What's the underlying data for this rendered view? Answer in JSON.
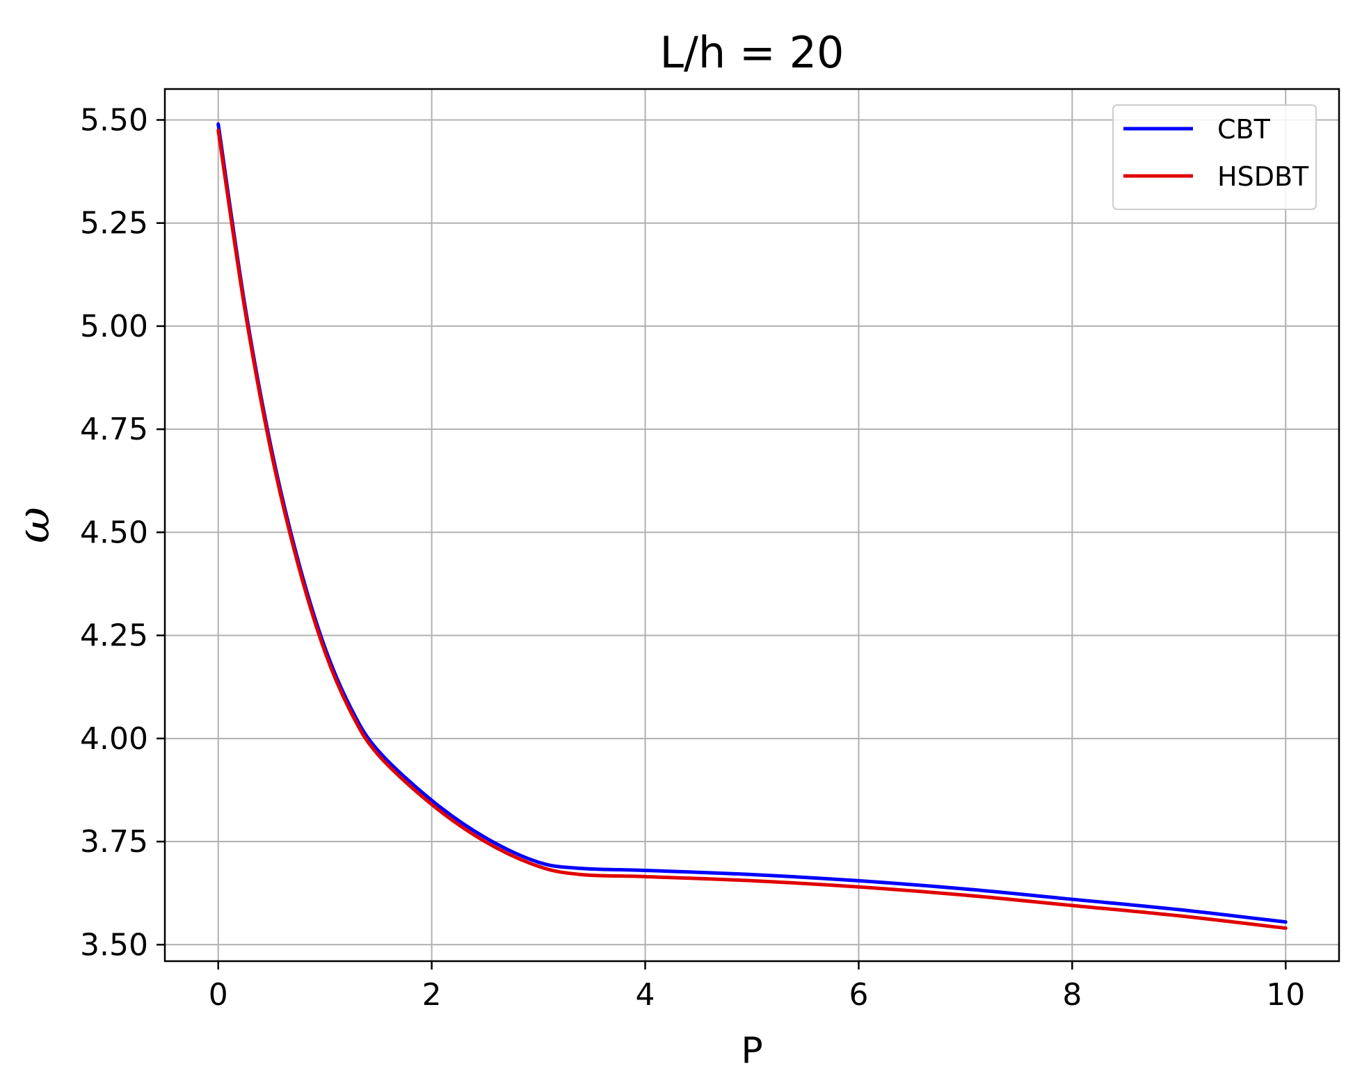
{
  "chart_data": {
    "type": "line",
    "title": "L/h = 20",
    "xlabel": "P",
    "ylabel": "ω",
    "xlim": [
      -0.5,
      10.5
    ],
    "ylim": [
      3.46,
      5.575
    ],
    "xticks": [
      0,
      2,
      4,
      6,
      8,
      10
    ],
    "xtick_labels": [
      "0",
      "2",
      "4",
      "6",
      "8",
      "10"
    ],
    "yticks": [
      3.5,
      3.75,
      4.0,
      4.25,
      4.5,
      4.75,
      5.0,
      5.25,
      5.5
    ],
    "ytick_labels": [
      "3.50",
      "3.75",
      "4.00",
      "4.25",
      "4.50",
      "4.75",
      "5.00",
      "5.25",
      "5.50"
    ],
    "grid": true,
    "legend_position": "top-right",
    "series": [
      {
        "name": "CBT",
        "color": "#0000ff",
        "x": [
          0,
          0.25,
          0.5,
          0.75,
          1.0,
          1.25,
          1.5,
          2.0,
          2.5,
          3.0,
          3.4,
          4.0,
          5.0,
          6.0,
          7.0,
          8.0,
          9.0,
          10.0
        ],
        "y": [
          5.49,
          5.05,
          4.7,
          4.43,
          4.22,
          4.07,
          3.97,
          3.85,
          3.76,
          3.7,
          3.685,
          3.68,
          3.67,
          3.655,
          3.635,
          3.61,
          3.585,
          3.555
        ]
      },
      {
        "name": "HSDBT",
        "color": "#e00000",
        "x": [
          0,
          0.25,
          0.5,
          0.75,
          1.0,
          1.25,
          1.5,
          2.0,
          2.5,
          3.0,
          3.4,
          4.0,
          5.0,
          6.0,
          7.0,
          8.0,
          9.0,
          10.0
        ],
        "y": [
          5.475,
          5.04,
          4.69,
          4.42,
          4.21,
          4.06,
          3.96,
          3.84,
          3.75,
          3.69,
          3.67,
          3.665,
          3.655,
          3.64,
          3.62,
          3.595,
          3.57,
          3.54
        ]
      }
    ]
  }
}
